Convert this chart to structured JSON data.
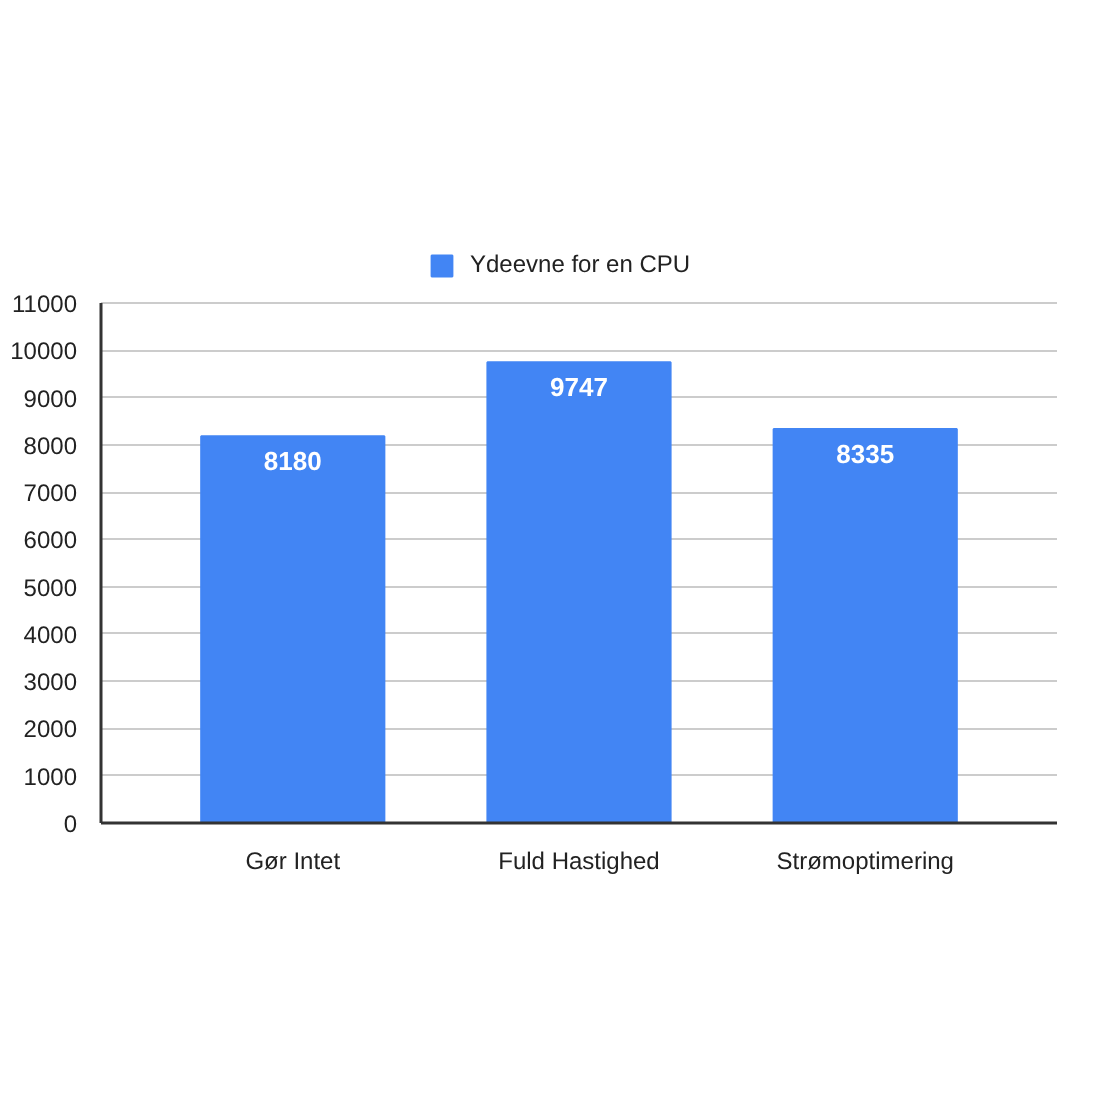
{
  "chart_data": {
    "type": "bar",
    "categories": [
      "Gør Intet",
      "Fuld Hastighed",
      "Strømoptimering"
    ],
    "series": [
      {
        "name": "Ydeevne for en CPU",
        "color": "#4285f4",
        "values": [
          8180,
          9747,
          8335
        ]
      }
    ],
    "ylim": [
      0,
      11000
    ],
    "yticks": [
      0,
      1000,
      2000,
      3000,
      4000,
      5000,
      6000,
      7000,
      8000,
      9000,
      10000,
      11000
    ],
    "grid": "y",
    "legend": "top",
    "data_labels": true
  }
}
